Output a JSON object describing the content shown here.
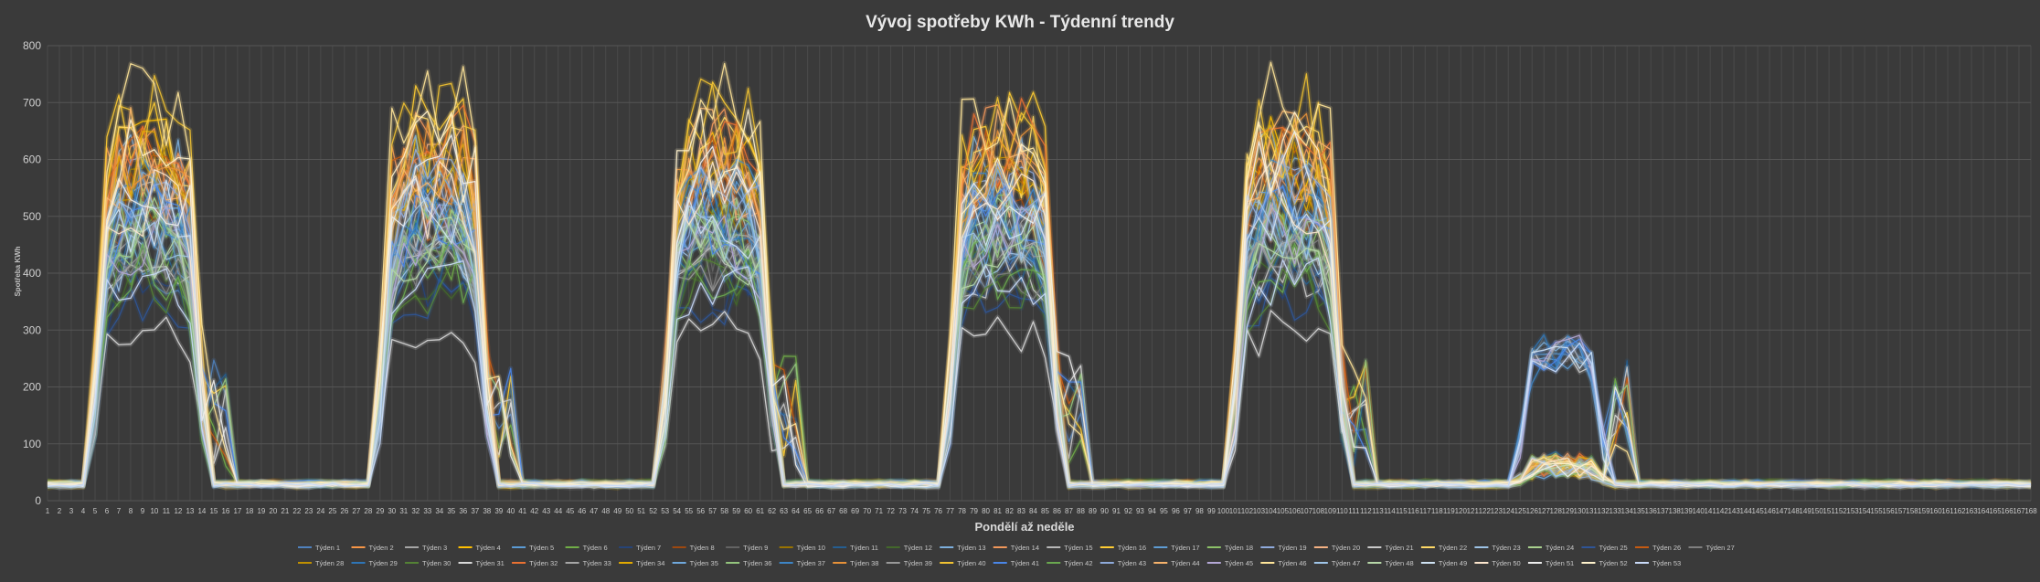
{
  "chart_data": {
    "type": "line",
    "title": "Vývoj spotřeby KWh - Týdenní trendy",
    "xlabel": "Pondělí až neděle",
    "ylabel": "Spotřeba KWh",
    "ylim": [
      0,
      800
    ],
    "yticks": [
      0,
      100,
      200,
      300,
      400,
      500,
      600,
      700,
      800
    ],
    "x_range": [
      1,
      168
    ],
    "grid": "both",
    "legend_position": "bottom",
    "day_profile": {
      "note_units": "hour index 1-168, values in KWh",
      "baseline": 25,
      "work_blocks": [
        {
          "start": 6,
          "end": 13
        },
        {
          "start": 30,
          "end": 37
        },
        {
          "start": 54,
          "end": 61
        },
        {
          "start": 78,
          "end": 85
        },
        {
          "start": 102,
          "end": 109
        },
        {
          "start": 126,
          "end": 131
        }
      ]
    },
    "series": [
      {
        "name": "Týden 1",
        "color": "#4f81bd",
        "peak": 420,
        "base": 25
      },
      {
        "name": "Týden 2",
        "color": "#f79646",
        "peak": 560,
        "base": 30
      },
      {
        "name": "Týden 3",
        "color": "#a5a5a5",
        "peak": 480,
        "base": 28
      },
      {
        "name": "Týden 4",
        "color": "#ffc000",
        "peak": 600,
        "base": 22
      },
      {
        "name": "Týden 5",
        "color": "#5b9bd5",
        "peak": 500,
        "base": 26
      },
      {
        "name": "Týden 6",
        "color": "#70ad47",
        "peak": 450,
        "base": 30
      },
      {
        "name": "Týden 7",
        "color": "#264478",
        "peak": 380,
        "base": 24
      },
      {
        "name": "Týden 8",
        "color": "#9e480e",
        "peak": 520,
        "base": 27
      },
      {
        "name": "Týden 9",
        "color": "#636363",
        "peak": 470,
        "base": 25
      },
      {
        "name": "Týden 10",
        "color": "#997300",
        "peak": 540,
        "base": 29
      },
      {
        "name": "Týden 11",
        "color": "#255e91",
        "peak": 430,
        "base": 23
      },
      {
        "name": "Týden 12",
        "color": "#43682b",
        "peak": 400,
        "base": 31
      },
      {
        "name": "Týden 13",
        "color": "#7cafdd",
        "peak": 580,
        "base": 26
      },
      {
        "name": "Týden 14",
        "color": "#f1975a",
        "peak": 620,
        "base": 28
      },
      {
        "name": "Týden 15",
        "color": "#b7b7b7",
        "peak": 510,
        "base": 24
      },
      {
        "name": "Týden 16",
        "color": "#ffcd33",
        "peak": 650,
        "base": 25
      },
      {
        "name": "Týden 17",
        "color": "#5e9cd3",
        "peak": 460,
        "base": 30
      },
      {
        "name": "Týden 18",
        "color": "#8cc168",
        "peak": 490,
        "base": 27
      },
      {
        "name": "Týden 19",
        "color": "#8faadc",
        "peak": 530,
        "base": 25
      },
      {
        "name": "Týden 20",
        "color": "#f4b183",
        "peak": 570,
        "base": 26
      },
      {
        "name": "Týden 21",
        "color": "#c9c9c9",
        "peak": 410,
        "base": 22
      },
      {
        "name": "Týden 22",
        "color": "#ffd966",
        "peak": 610,
        "base": 28
      },
      {
        "name": "Týden 23",
        "color": "#9dc3e6",
        "peak": 440,
        "base": 29
      },
      {
        "name": "Týden 24",
        "color": "#a9d18e",
        "peak": 470,
        "base": 24
      },
      {
        "name": "Týden 25",
        "color": "#2f5597",
        "peak": 350,
        "base": 26
      },
      {
        "name": "Týden 26",
        "color": "#c55a11",
        "peak": 590,
        "base": 30
      },
      {
        "name": "Týden 27",
        "color": "#7f7f7f",
        "peak": 420,
        "base": 25
      },
      {
        "name": "Týden 28",
        "color": "#bf9000",
        "peak": 560,
        "base": 27
      },
      {
        "name": "Týden 29",
        "color": "#2e75b6",
        "peak": 500,
        "base": 23
      },
      {
        "name": "Týden 30",
        "color": "#548235",
        "peak": 380,
        "base": 31
      },
      {
        "name": "Týden 31",
        "color": "#d9d9d9",
        "peak": 300,
        "base": 25
      },
      {
        "name": "Týden 32",
        "color": "#e97132",
        "peak": 630,
        "base": 26
      },
      {
        "name": "Týden 33",
        "color": "#a6a6a6",
        "peak": 450,
        "base": 28
      },
      {
        "name": "Týden 34",
        "color": "#e2aa00",
        "peak": 580,
        "base": 24
      },
      {
        "name": "Týden 35",
        "color": "#6fa8dc",
        "peak": 520,
        "base": 27
      },
      {
        "name": "Týden 36",
        "color": "#93c47d",
        "peak": 470,
        "base": 29
      },
      {
        "name": "Týden 37",
        "color": "#3d85c6",
        "peak": 540,
        "base": 25
      },
      {
        "name": "Týden 38",
        "color": "#e69138",
        "peak": 600,
        "base": 26
      },
      {
        "name": "Týden 39",
        "color": "#999999",
        "peak": 430,
        "base": 22
      },
      {
        "name": "Týden 40",
        "color": "#f1c232",
        "peak": 660,
        "base": 28
      },
      {
        "name": "Týden 41",
        "color": "#4a86e8",
        "peak": 490,
        "base": 30
      },
      {
        "name": "Týden 42",
        "color": "#6aa84f",
        "peak": 410,
        "base": 24
      },
      {
        "name": "Týden 43",
        "color": "#8eaadb",
        "peak": 550,
        "base": 26
      },
      {
        "name": "Týden 44",
        "color": "#f6b26b",
        "peak": 610,
        "base": 27
      },
      {
        "name": "Týden 45",
        "color": "#b4a7d6",
        "peak": 460,
        "base": 25
      },
      {
        "name": "Týden 46",
        "color": "#ffe599",
        "peak": 700,
        "base": 29
      },
      {
        "name": "Týden 47",
        "color": "#9fc5e8",
        "peak": 480,
        "base": 23
      },
      {
        "name": "Týden 48",
        "color": "#b6d7a8",
        "peak": 440,
        "base": 28
      },
      {
        "name": "Týden 49",
        "color": "#cfe2f3",
        "peak": 500,
        "base": 26
      },
      {
        "name": "Týden 50",
        "color": "#fce5cd",
        "peak": 530,
        "base": 25
      },
      {
        "name": "Týden 51",
        "color": "#eeeeee",
        "peak": 570,
        "base": 24
      },
      {
        "name": "Týden 52",
        "color": "#fff2cc",
        "peak": 620,
        "base": 27
      },
      {
        "name": "Týden 53",
        "color": "#c9daf8",
        "peak": 390,
        "base": 25
      }
    ]
  }
}
